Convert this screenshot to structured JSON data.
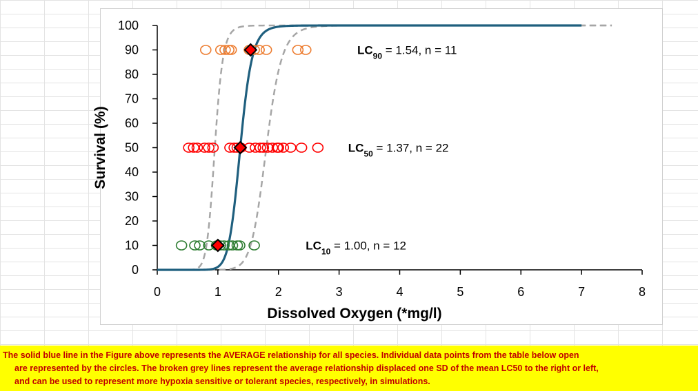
{
  "chart_data": {
    "type": "scatter",
    "xlabel": "Dissolved Oxygen  (*mg/l)",
    "ylabel": "Survival (%)",
    "xlim": [
      0,
      8
    ],
    "ylim": [
      0,
      100
    ],
    "xticks": [
      "0",
      "1",
      "2",
      "3",
      "4",
      "5",
      "6",
      "7",
      "8"
    ],
    "yticks": [
      "0",
      "10",
      "20",
      "30",
      "40",
      "50",
      "60",
      "70",
      "80",
      "90",
      "100"
    ],
    "grid": false,
    "curves": [
      {
        "role": "average",
        "color": "#1f5f7e",
        "style": "solid",
        "lc50": 1.37,
        "x_range": [
          0,
          7
        ]
      },
      {
        "role": "minus-one-sd",
        "color": "#a6a6a6",
        "style": "dashed",
        "lc50": 0.95,
        "x_range": [
          0,
          7.5
        ]
      },
      {
        "role": "plus-one-sd",
        "color": "#a6a6a6",
        "style": "dashed",
        "lc50": 1.8,
        "x_range": [
          0,
          7.5
        ]
      }
    ],
    "series": [
      {
        "level": 90,
        "color": "#ed7d31",
        "x": [
          0.8,
          1.05,
          1.12,
          1.18,
          1.22,
          1.52,
          1.6,
          1.68,
          1.8,
          2.32,
          2.45
        ]
      },
      {
        "level": 50,
        "color": "#ff0000",
        "x": [
          0.52,
          0.6,
          0.66,
          0.78,
          0.85,
          0.92,
          1.2,
          1.27,
          1.32,
          1.38,
          1.52,
          1.62,
          1.7,
          1.75,
          1.82,
          1.9,
          1.98,
          2.0,
          2.08,
          2.2,
          2.38,
          2.65
        ]
      },
      {
        "level": 10,
        "color": "#2e7d32",
        "x": [
          0.4,
          0.62,
          0.7,
          0.85,
          0.98,
          1.04,
          1.1,
          1.18,
          1.24,
          1.32,
          1.36,
          1.6
        ]
      }
    ],
    "lc_points": [
      {
        "x": 1.54,
        "y": 90
      },
      {
        "x": 1.37,
        "y": 50
      },
      {
        "x": 1.0,
        "y": 10
      }
    ],
    "annotations": [
      {
        "sub": "90",
        "value": "1.54",
        "n": "11",
        "at_x": 3.3,
        "at_y": 90
      },
      {
        "sub": "50",
        "value": "1.37",
        "n": "22",
        "at_x": 3.15,
        "at_y": 50
      },
      {
        "sub": "10",
        "value": "1.00",
        "n": "12",
        "at_x": 2.45,
        "at_y": 10
      }
    ]
  },
  "caption": {
    "line1": "The solid blue line in the Figure above represents the AVERAGE relationship for all species.  Individual data points from the table below open",
    "line2": "are represented by the  circles.  The broken grey lines represent the average relationship displaced one SD of the mean LC50 to the right or left,",
    "line3": "and can be used to represent more hypoxia sensitive or tolerant species, respectively, in simulations."
  }
}
